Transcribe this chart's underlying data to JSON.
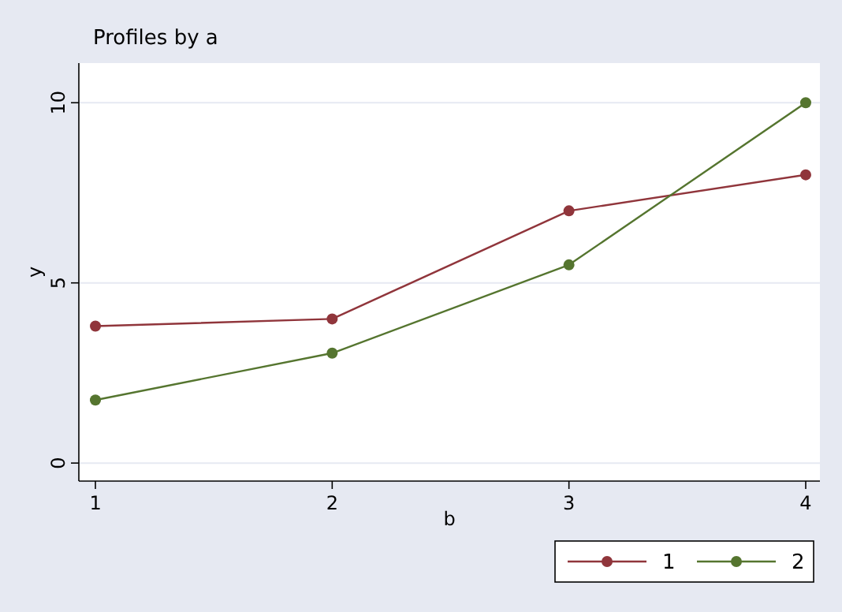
{
  "chart_data": {
    "type": "line",
    "title": "Profiles by a",
    "xlabel": "b",
    "ylabel": "y",
    "x": [
      1,
      2,
      3,
      4
    ],
    "xlim": [
      0.93,
      4.06
    ],
    "xticks": [
      1,
      2,
      3,
      4
    ],
    "ylim": [
      -0.5,
      11.1
    ],
    "yticks": [
      0,
      5,
      10
    ],
    "grid": "y",
    "legend": "bottom right",
    "marker": "circle",
    "line_style": "solid",
    "series": [
      {
        "name": "1",
        "color": "#90353b",
        "values": [
          3.8,
          4.0,
          7.0,
          8.0
        ]
      },
      {
        "name": "2",
        "color": "#55752f",
        "values": [
          1.75,
          3.05,
          5.5,
          10
        ]
      }
    ]
  }
}
